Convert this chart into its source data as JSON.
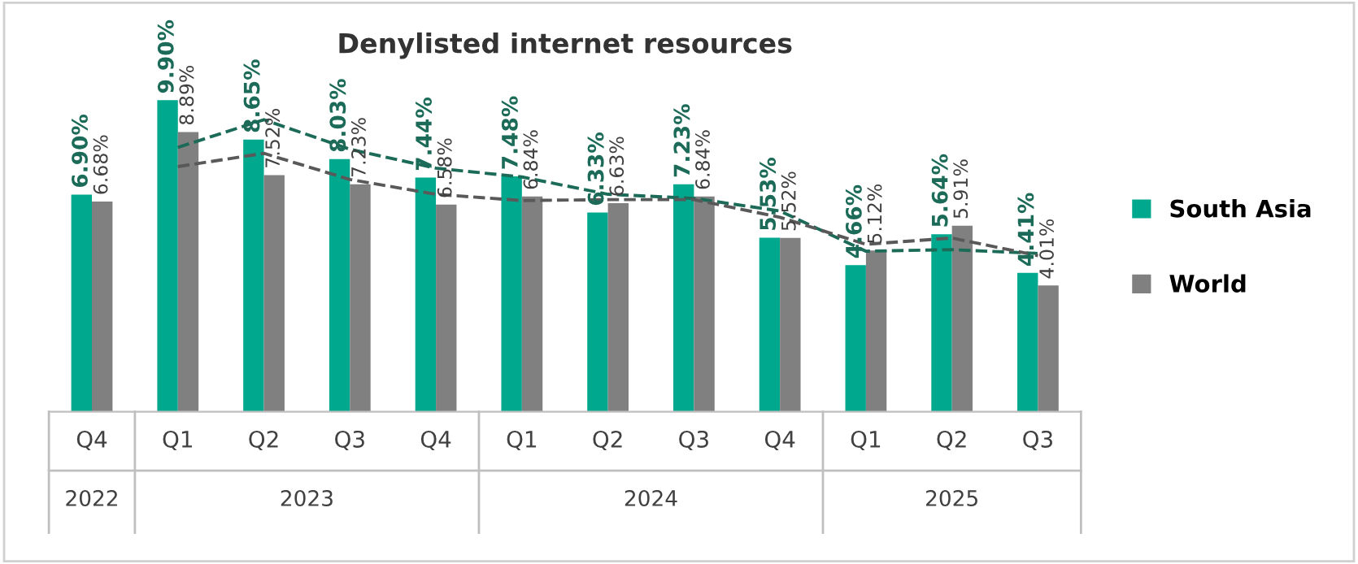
{
  "chart_data": {
    "type": "bar",
    "title": "Denylisted internet resources",
    "categories": [
      "Q4",
      "Q1",
      "Q2",
      "Q3",
      "Q4",
      "Q1",
      "Q2",
      "Q3",
      "Q4",
      "Q1",
      "Q2",
      "Q3"
    ],
    "annotations": [
      "2022",
      "2023",
      "2024",
      "2025"
    ],
    "legend": "right",
    "series": [
      {
        "name": "South Asia",
        "color": "#00a88e",
        "values": [
          6.9,
          9.9,
          8.65,
          8.03,
          7.44,
          7.48,
          6.33,
          7.23,
          5.53,
          4.66,
          5.64,
          4.41
        ],
        "value_labels": [
          "6.90%",
          "9.90%",
          "8.65%",
          "8.03%",
          "7.44%",
          "7.48%",
          "6.33%",
          "7.23%",
          "5.53%",
          "4.66%",
          "5.64%",
          "4.41%"
        ]
      },
      {
        "name": "World",
        "color": "#808080",
        "values": [
          6.68,
          8.89,
          7.52,
          7.23,
          6.58,
          6.84,
          6.63,
          6.84,
          5.52,
          5.12,
          5.91,
          4.01
        ],
        "value_labels": [
          "6.68%",
          "8.89%",
          "7.52%",
          "7.23%",
          "6.58%",
          "6.84%",
          "6.63%",
          "6.84%",
          "5.52%",
          "5.12%",
          "5.91%",
          "4.01%"
        ]
      },
      {
        "type": "line",
        "line_style": "dashed",
        "color": "#1b6b58",
        "values": [
          null,
          8.4,
          9.28,
          8.34,
          7.74,
          7.46,
          6.91,
          6.78,
          6.38,
          5.1,
          5.15,
          5.03
        ]
      },
      {
        "type": "line",
        "line_style": "dashed",
        "color": "#595959",
        "values": [
          null,
          7.79,
          8.21,
          7.38,
          6.91,
          6.71,
          6.74,
          6.74,
          6.18,
          5.32,
          5.52,
          4.96
        ]
      }
    ]
  }
}
